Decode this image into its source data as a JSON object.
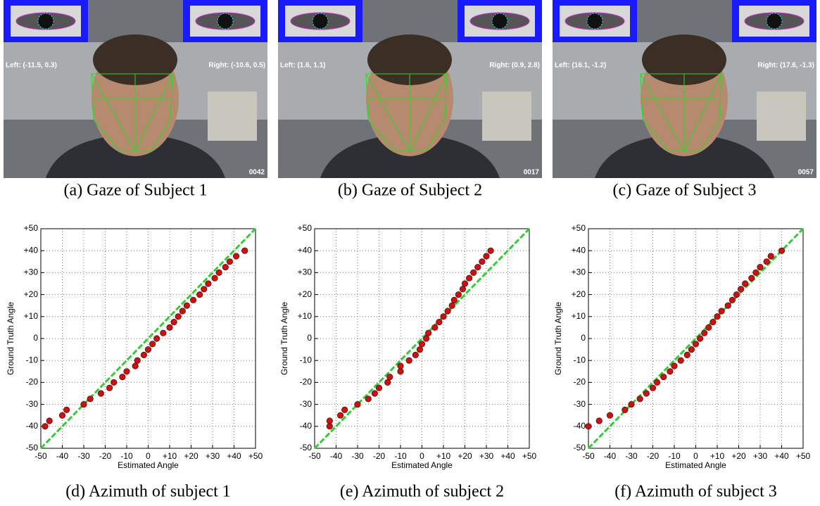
{
  "photos": [
    {
      "left": "Left: (-11.5, 0.3)",
      "right": "Right: (-10.6, 0.5)",
      "frame": "0042",
      "caption": "(a) Gaze of Subject 1"
    },
    {
      "left": "Left: (1.6, 1.1)",
      "right": "Right: (0.9, 2.8)",
      "frame": "0017",
      "caption": "(b) Gaze of Subject 2"
    },
    {
      "left": "Left: (16.1, -1.2)",
      "right": "Right: (17.6, -1.3)",
      "frame": "0057",
      "caption": "(c) Gaze of Subject 3"
    }
  ],
  "chart_data": [
    {
      "type": "scatter",
      "caption": "(d) Azimuth of subject 1",
      "xlabel": "Estimated Angle",
      "ylabel": "Ground Truth Angle",
      "xlim": [
        -50,
        50
      ],
      "ylim": [
        -50,
        50
      ],
      "grid": true,
      "color": "#cc1111",
      "reference_color": "#33cc33",
      "xticks": [
        -50,
        -40,
        -30,
        -20,
        -10,
        0,
        {
          "value": 10,
          "label": "+10"
        },
        {
          "value": 20,
          "label": "+20"
        },
        {
          "value": 30,
          "label": "+30"
        },
        {
          "value": 40,
          "label": "+40"
        },
        {
          "value": 50,
          "label": "+50"
        }
      ],
      "yticks": [
        -50,
        -40,
        -30,
        -20,
        -10,
        0,
        {
          "value": 10,
          "label": "+10"
        },
        {
          "value": 20,
          "label": "+20"
        },
        {
          "value": 30,
          "label": "+30"
        },
        {
          "value": 40,
          "label": "+40"
        },
        {
          "value": 50,
          "label": "+50"
        }
      ],
      "x": [
        -48,
        -46,
        -40,
        -38,
        -30,
        -27,
        -22,
        -18,
        -16,
        -12,
        -10,
        -6,
        -5,
        -2,
        0,
        2,
        4,
        7,
        10,
        12,
        14,
        16,
        18,
        21,
        24,
        26,
        28,
        31,
        33,
        36,
        38,
        41,
        45
      ],
      "y": [
        -40,
        -37.5,
        -35,
        -32.5,
        -30,
        -27.5,
        -25,
        -22.5,
        -20,
        -17.5,
        -15,
        -12.5,
        -10,
        -7.5,
        -5,
        -2.5,
        0,
        2.5,
        5,
        7.5,
        10,
        12.5,
        15,
        17.5,
        20,
        22.5,
        25,
        27.5,
        30,
        32.5,
        35,
        37.5,
        40
      ]
    },
    {
      "type": "scatter",
      "caption": "(e) Azimuth of subject 2",
      "xlabel": "Estimated Angle",
      "ylabel": "Ground Truth Angle",
      "xlim": [
        -50,
        50
      ],
      "ylim": [
        -50,
        50
      ],
      "grid": true,
      "color": "#cc1111",
      "reference_color": "#33cc33",
      "xticks": [
        -50,
        -40,
        -30,
        -20,
        -10,
        0,
        {
          "value": 10,
          "label": "+10"
        },
        {
          "value": 20,
          "label": "+20"
        },
        {
          "value": 30,
          "label": "+30"
        },
        {
          "value": 40,
          "label": "+40"
        },
        {
          "value": 50,
          "label": "+50"
        }
      ],
      "yticks": [
        -50,
        -40,
        -30,
        -20,
        -10,
        0,
        {
          "value": 10,
          "label": "+10"
        },
        {
          "value": 20,
          "label": "+20"
        },
        {
          "value": 30,
          "label": "+30"
        },
        {
          "value": 40,
          "label": "+40"
        },
        {
          "value": 50,
          "label": "+50"
        }
      ],
      "x": [
        -43,
        -43,
        -38,
        -36,
        -30,
        -25,
        -22,
        -20,
        -16,
        -15,
        -10,
        -10,
        -6,
        -3,
        -1,
        0,
        2,
        3,
        6,
        8,
        10,
        12,
        14,
        15,
        17,
        19,
        20,
        22,
        24,
        26,
        28,
        30,
        32
      ],
      "y": [
        -40,
        -37.5,
        -35,
        -32.5,
        -30,
        -27.5,
        -25,
        -22.5,
        -20,
        -17.5,
        -15,
        -12.5,
        -10,
        -7.5,
        -5,
        -2.5,
        0,
        2.5,
        5,
        7.5,
        10,
        12.5,
        15,
        17.5,
        20,
        22.5,
        25,
        27.5,
        30,
        32.5,
        35,
        37.5,
        40
      ]
    },
    {
      "type": "scatter",
      "caption": "(f) Azimuth of subject 3",
      "xlabel": "Estimated Angle",
      "ylabel": "Ground Truth Angle",
      "xlim": [
        -50,
        50
      ],
      "ylim": [
        -50,
        50
      ],
      "grid": true,
      "color": "#cc1111",
      "reference_color": "#33cc33",
      "xticks": [
        -50,
        -40,
        -30,
        -20,
        -10,
        0,
        {
          "value": 10,
          "label": "+10"
        },
        {
          "value": 20,
          "label": "+20"
        },
        {
          "value": 30,
          "label": "+30"
        },
        {
          "value": 40,
          "label": "+40"
        },
        {
          "value": 50,
          "label": "+50"
        }
      ],
      "yticks": [
        -50,
        -40,
        -30,
        -20,
        -10,
        0,
        {
          "value": 10,
          "label": "+10"
        },
        {
          "value": 20,
          "label": "+20"
        },
        {
          "value": 30,
          "label": "+30"
        },
        {
          "value": 40,
          "label": "+40"
        },
        {
          "value": 50,
          "label": "+50"
        }
      ],
      "x": [
        -50,
        -45,
        -40,
        -33,
        -30,
        -26,
        -23,
        -20,
        -18,
        -15,
        -12,
        -10,
        -7,
        -4,
        -2,
        0,
        2,
        4,
        6,
        8,
        10,
        12,
        15,
        17,
        19,
        21,
        23,
        26,
        28,
        30,
        33,
        35,
        40
      ],
      "y": [
        -40,
        -37.5,
        -35,
        -32.5,
        -30,
        -27.5,
        -25,
        -22.5,
        -20,
        -17.5,
        -15,
        -12.5,
        -10,
        -7.5,
        -5,
        -2.5,
        0,
        2.5,
        5,
        7.5,
        10,
        12.5,
        15,
        17.5,
        20,
        22.5,
        25,
        27.5,
        30,
        32.5,
        35,
        37.5,
        40
      ]
    }
  ]
}
